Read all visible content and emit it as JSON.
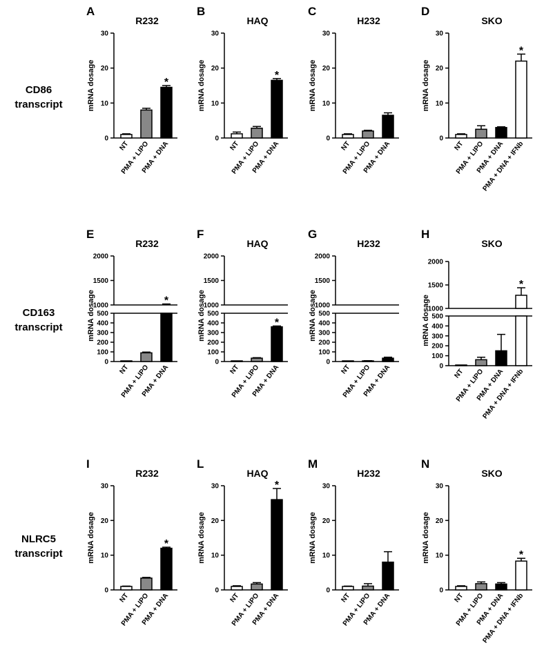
{
  "colors": {
    "NT": "#ffffff",
    "PMA + LIPO": "#888888",
    "PMA + DNA": "#000000",
    "PMA + DNA + IFNb": "#ffffff"
  },
  "ylabel": "mRNA dosage",
  "row_labels": [
    {
      "line1": "CD86",
      "line2": "transcript"
    },
    {
      "line1": "CD163",
      "line2": "transcript"
    },
    {
      "line1": "NLRC5",
      "line2": "transcript"
    }
  ],
  "chart_data": [
    {
      "type": "bar",
      "letter": "A",
      "title": "R232",
      "ylabel": "mRNA dosage",
      "ylim": [
        0,
        30
      ],
      "yticks": [
        0,
        10,
        20,
        30
      ],
      "categories": [
        "NT",
        "PMA + LIPO",
        "PMA + DNA"
      ],
      "values": [
        1.0,
        8.0,
        14.5
      ],
      "errors": [
        0.2,
        0.5,
        0.5
      ],
      "significant": [
        false,
        false,
        true
      ]
    },
    {
      "type": "bar",
      "letter": "B",
      "title": "HAQ",
      "ylabel": "mRNA dosage",
      "ylim": [
        0,
        30
      ],
      "yticks": [
        0,
        10,
        20,
        30
      ],
      "categories": [
        "NT",
        "PMA + LIPO",
        "PMA + DNA"
      ],
      "values": [
        1.2,
        2.8,
        16.5
      ],
      "errors": [
        0.5,
        0.5,
        0.5
      ],
      "significant": [
        false,
        false,
        true
      ]
    },
    {
      "type": "bar",
      "letter": "C",
      "title": "H232",
      "ylabel": "mRNA dosage",
      "ylim": [
        0,
        30
      ],
      "yticks": [
        0,
        10,
        20,
        30
      ],
      "categories": [
        "NT",
        "PMA + LIPO",
        "PMA + DNA"
      ],
      "values": [
        1.0,
        2.0,
        6.5
      ],
      "errors": [
        0.2,
        0.2,
        0.7
      ],
      "significant": [
        false,
        false,
        false
      ]
    },
    {
      "type": "bar",
      "letter": "D",
      "title": "SKO",
      "ylabel": "mRNA dosage",
      "ylim": [
        0,
        30
      ],
      "yticks": [
        0,
        10,
        20,
        30
      ],
      "categories": [
        "NT",
        "PMA + LIPO",
        "PMA + DNA",
        "PMA + DNA + IFNb"
      ],
      "values": [
        1.0,
        2.5,
        3.0,
        22.0
      ],
      "errors": [
        0.2,
        1.0,
        0.2,
        2.0
      ],
      "significant": [
        false,
        false,
        false,
        true
      ]
    },
    {
      "type": "bar",
      "letter": "E",
      "title": "R232",
      "ylabel": "mRNA dosage",
      "broken_axis": true,
      "ylim": [
        0,
        2000
      ],
      "yticks": [
        0,
        100,
        200,
        300,
        400,
        500,
        1000,
        1500,
        2000
      ],
      "categories": [
        "NT",
        "PMA + LIPO",
        "PMA + DNA"
      ],
      "values": [
        2,
        90,
        950
      ],
      "errors": [
        0,
        8,
        70
      ],
      "significant": [
        false,
        false,
        true
      ]
    },
    {
      "type": "bar",
      "letter": "F",
      "title": "HAQ",
      "ylabel": "mRNA dosage",
      "broken_axis": true,
      "ylim": [
        0,
        2000
      ],
      "yticks": [
        0,
        100,
        200,
        300,
        400,
        500,
        1000,
        1500,
        2000
      ],
      "categories": [
        "NT",
        "PMA + LIPO",
        "PMA + DNA"
      ],
      "values": [
        2,
        35,
        360
      ],
      "errors": [
        0,
        5,
        8
      ],
      "significant": [
        false,
        false,
        true
      ]
    },
    {
      "type": "bar",
      "letter": "G",
      "title": "H232",
      "ylabel": "mRNA dosage",
      "broken_axis": true,
      "ylim": [
        0,
        2000
      ],
      "yticks": [
        0,
        100,
        200,
        300,
        400,
        500,
        1000,
        1500,
        2000
      ],
      "categories": [
        "NT",
        "PMA + LIPO",
        "PMA + DNA"
      ],
      "values": [
        1,
        6,
        35
      ],
      "errors": [
        0,
        3,
        10
      ],
      "significant": [
        false,
        false,
        false
      ]
    },
    {
      "type": "bar",
      "letter": "H",
      "title": "SKO",
      "ylabel": "mRNA dosage",
      "broken_axis": true,
      "ylim": [
        0,
        2000
      ],
      "yticks": [
        0,
        100,
        200,
        300,
        400,
        500,
        1000,
        1500,
        2000
      ],
      "categories": [
        "NT",
        "PMA + LIPO",
        "PMA + DNA",
        "PMA + DNA + IFNb"
      ],
      "values": [
        2,
        60,
        150,
        1280
      ],
      "errors": [
        0,
        25,
        165,
        160
      ],
      "significant": [
        false,
        false,
        false,
        true
      ]
    },
    {
      "type": "bar",
      "letter": "I",
      "title": "R232",
      "ylabel": "mRNA dosage",
      "ylim": [
        0,
        30
      ],
      "yticks": [
        0,
        10,
        20,
        30
      ],
      "categories": [
        "NT",
        "PMA + LIPO",
        "PMA + DNA"
      ],
      "values": [
        1.0,
        3.4,
        12.0
      ],
      "errors": [
        0.1,
        0.2,
        0.3
      ],
      "significant": [
        false,
        false,
        true
      ]
    },
    {
      "type": "bar",
      "letter": "L",
      "title": "HAQ",
      "ylabel": "mRNA dosage",
      "ylim": [
        0,
        30
      ],
      "yticks": [
        0,
        10,
        20,
        30
      ],
      "categories": [
        "NT",
        "PMA + LIPO",
        "PMA + DNA"
      ],
      "values": [
        1.0,
        1.7,
        26.0
      ],
      "errors": [
        0.2,
        0.4,
        3.2
      ],
      "significant": [
        false,
        false,
        true
      ]
    },
    {
      "type": "bar",
      "letter": "M",
      "title": "H232",
      "ylabel": "mRNA dosage",
      "ylim": [
        0,
        30
      ],
      "yticks": [
        0,
        10,
        20,
        30
      ],
      "categories": [
        "NT",
        "PMA + LIPO",
        "PMA + DNA"
      ],
      "values": [
        1.0,
        1.1,
        8.0
      ],
      "errors": [
        0.1,
        0.7,
        3.0
      ],
      "significant": [
        false,
        false,
        false
      ]
    },
    {
      "type": "bar",
      "letter": "N",
      "title": "SKO",
      "ylabel": "mRNA dosage",
      "ylim": [
        0,
        30
      ],
      "yticks": [
        0,
        10,
        20,
        30
      ],
      "categories": [
        "NT",
        "PMA + LIPO",
        "PMA + DNA",
        "PMA + DNA + IFNb"
      ],
      "values": [
        1.0,
        1.8,
        1.7,
        8.3
      ],
      "errors": [
        0.2,
        0.5,
        0.4,
        0.8
      ],
      "significant": [
        false,
        false,
        false,
        true
      ]
    }
  ]
}
